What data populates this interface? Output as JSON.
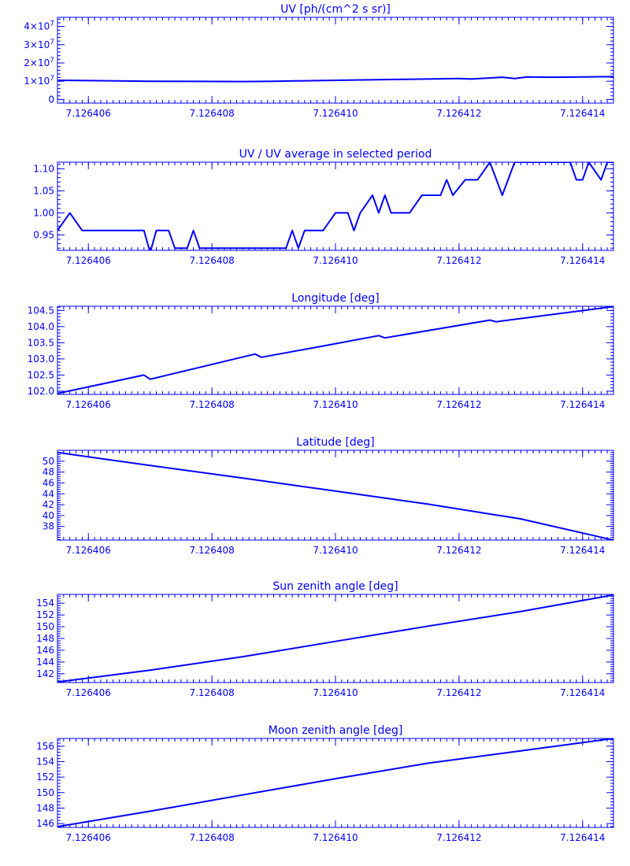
{
  "colors": {
    "line": "#0000ff",
    "background": "#ffffff"
  },
  "chart_data": [
    {
      "type": "line",
      "title": "UV [ph/(cm^2 s sr)]",
      "xlim": [
        7.1264055,
        7.1264145
      ],
      "ylim": [
        -2000000,
        45000000
      ],
      "x_ticks": [
        7.126406,
        7.126408,
        7.12641,
        7.126412,
        7.126414
      ],
      "x_tick_labels": [
        "7.126406",
        "7.126408",
        "7.126410",
        "7.126412",
        "7.126414"
      ],
      "y_ticks": [
        0,
        10000000,
        20000000,
        30000000,
        40000000
      ],
      "y_tick_labels": [
        "0",
        "1×10",
        "2×10",
        "3×10",
        "4×10"
      ],
      "y_tick_exponents": [
        "",
        "7",
        "7",
        "7",
        "7"
      ],
      "x": [
        7.1264055,
        7.126407,
        7.1264085,
        7.126409,
        7.12641,
        7.126411,
        7.126412,
        7.1264122,
        7.1264125,
        7.1264127,
        7.1264129,
        7.1264131,
        7.1264135,
        7.1264145
      ],
      "y": [
        10500000,
        10000000,
        9800000,
        10000000,
        10500000,
        11000000,
        11500000,
        11200000,
        11800000,
        12200000,
        11500000,
        12300000,
        12200000,
        12500000
      ]
    },
    {
      "type": "line",
      "title": "UV / UV average in selected period",
      "xlim": [
        7.1264055,
        7.1264145
      ],
      "ylim": [
        0.915,
        1.115
      ],
      "x_ticks": [
        7.126406,
        7.126408,
        7.12641,
        7.126412,
        7.126414
      ],
      "x_tick_labels": [
        "7.126406",
        "7.126408",
        "7.126410",
        "7.126412",
        "7.126414"
      ],
      "y_ticks": [
        0.95,
        1.0,
        1.05,
        1.1
      ],
      "y_tick_labels": [
        "0.95",
        "1.00",
        "1.05",
        "1.10"
      ],
      "y_tick_exponents": [
        "",
        "",
        "",
        ""
      ],
      "x": [
        7.1264055,
        7.1264057,
        7.1264059,
        7.1264069,
        7.126407,
        7.1264071,
        7.1264073,
        7.1264074,
        7.1264076,
        7.1264077,
        7.1264078,
        7.1264092,
        7.1264093,
        7.1264094,
        7.1264095,
        7.1264097,
        7.1264098,
        7.12641,
        7.1264102,
        7.1264103,
        7.1264104,
        7.1264106,
        7.1264107,
        7.1264108,
        7.1264109,
        7.1264112,
        7.1264114,
        7.1264117,
        7.1264118,
        7.1264119,
        7.1264121,
        7.1264122,
        7.1264123,
        7.1264125,
        7.1264127,
        7.1264129,
        7.1264131,
        7.1264138,
        7.1264139,
        7.126414,
        7.1264141,
        7.1264143,
        7.1264144,
        7.1264145
      ],
      "y": [
        0.96,
        1.0,
        0.96,
        0.96,
        0.91,
        0.96,
        0.96,
        0.92,
        0.92,
        0.96,
        0.92,
        0.92,
        0.96,
        0.92,
        0.96,
        0.96,
        0.96,
        1.0,
        1.0,
        0.96,
        1.0,
        1.04,
        1.0,
        1.04,
        1.0,
        1.0,
        1.04,
        1.04,
        1.075,
        1.04,
        1.075,
        1.075,
        1.075,
        1.115,
        1.04,
        1.115,
        1.115,
        1.115,
        1.075,
        1.075,
        1.115,
        1.075,
        1.115,
        1.115
      ]
    },
    {
      "type": "line",
      "title": "Longitude [deg]",
      "xlim": [
        7.1264055,
        7.1264145
      ],
      "ylim": [
        101.9,
        104.63
      ],
      "x_ticks": [
        7.126406,
        7.126408,
        7.12641,
        7.126412,
        7.126414
      ],
      "x_tick_labels": [
        "7.126406",
        "7.126408",
        "7.126410",
        "7.126412",
        "7.126414"
      ],
      "y_ticks": [
        102.0,
        102.5,
        103.0,
        103.5,
        104.0,
        104.5
      ],
      "y_tick_labels": [
        "102.0",
        "102.5",
        "103.0",
        "103.5",
        "104.0",
        "104.5"
      ],
      "y_tick_exponents": [
        "",
        "",
        "",
        "",
        "",
        ""
      ],
      "x": [
        7.1264055,
        7.1264069,
        7.126407,
        7.1264087,
        7.1264088,
        7.1264098,
        7.1264107,
        7.1264108,
        7.1264125,
        7.1264126,
        7.1264145
      ],
      "y": [
        101.93,
        102.5,
        102.37,
        103.15,
        103.05,
        103.4,
        103.72,
        103.65,
        104.2,
        104.15,
        104.62
      ]
    },
    {
      "type": "line",
      "title": "Latitude [deg]",
      "xlim": [
        7.1264055,
        7.1264145
      ],
      "ylim": [
        35.5,
        52.0
      ],
      "x_ticks": [
        7.126406,
        7.126408,
        7.12641,
        7.126412,
        7.126414
      ],
      "x_tick_labels": [
        "7.126406",
        "7.126408",
        "7.126410",
        "7.126412",
        "7.126414"
      ],
      "y_ticks": [
        38,
        40,
        42,
        44,
        46,
        48,
        50
      ],
      "y_tick_labels": [
        "38",
        "40",
        "42",
        "44",
        "46",
        "48",
        "50"
      ],
      "y_tick_exponents": [
        "",
        "",
        "",
        "",
        "",
        "",
        ""
      ],
      "x": [
        7.1264055,
        7.126407,
        7.1264085,
        7.12641,
        7.1264115,
        7.126413,
        7.1264145
      ],
      "y": [
        51.6,
        49.2,
        46.9,
        44.5,
        42.1,
        39.4,
        35.5
      ]
    },
    {
      "type": "line",
      "title": "Sun zenith angle [deg]",
      "xlim": [
        7.1264055,
        7.1264145
      ],
      "ylim": [
        140.5,
        155.5
      ],
      "x_ticks": [
        7.126406,
        7.126408,
        7.12641,
        7.126412,
        7.126414
      ],
      "x_tick_labels": [
        "7.126406",
        "7.126408",
        "7.126410",
        "7.126412",
        "7.126414"
      ],
      "y_ticks": [
        142,
        144,
        146,
        148,
        150,
        152,
        154
      ],
      "y_tick_labels": [
        "142",
        "144",
        "146",
        "148",
        "150",
        "152",
        "154"
      ],
      "y_tick_exponents": [
        "",
        "",
        "",
        "",
        "",
        "",
        ""
      ],
      "x": [
        7.1264055,
        7.126407,
        7.1264085,
        7.12641,
        7.1264115,
        7.126413,
        7.1264145
      ],
      "y": [
        140.6,
        142.6,
        144.9,
        147.5,
        150.1,
        152.6,
        155.4
      ]
    },
    {
      "type": "line",
      "title": "Moon zenith angle [deg]",
      "xlim": [
        7.1264055,
        7.1264145
      ],
      "ylim": [
        145.5,
        157.0
      ],
      "x_ticks": [
        7.126406,
        7.126408,
        7.12641,
        7.126412,
        7.126414
      ],
      "x_tick_labels": [
        "7.126406",
        "7.126408",
        "7.126410",
        "7.126412",
        "7.126414"
      ],
      "y_ticks": [
        146,
        148,
        150,
        152,
        154,
        156
      ],
      "y_tick_labels": [
        "146",
        "148",
        "150",
        "152",
        "154",
        "156"
      ],
      "y_tick_exponents": [
        "",
        "",
        "",
        "",
        "",
        ""
      ],
      "x": [
        7.1264055,
        7.126407,
        7.1264085,
        7.12641,
        7.1264115,
        7.126413,
        7.1264145
      ],
      "y": [
        145.6,
        147.6,
        149.7,
        151.8,
        153.8,
        155.4,
        157.0
      ]
    }
  ]
}
